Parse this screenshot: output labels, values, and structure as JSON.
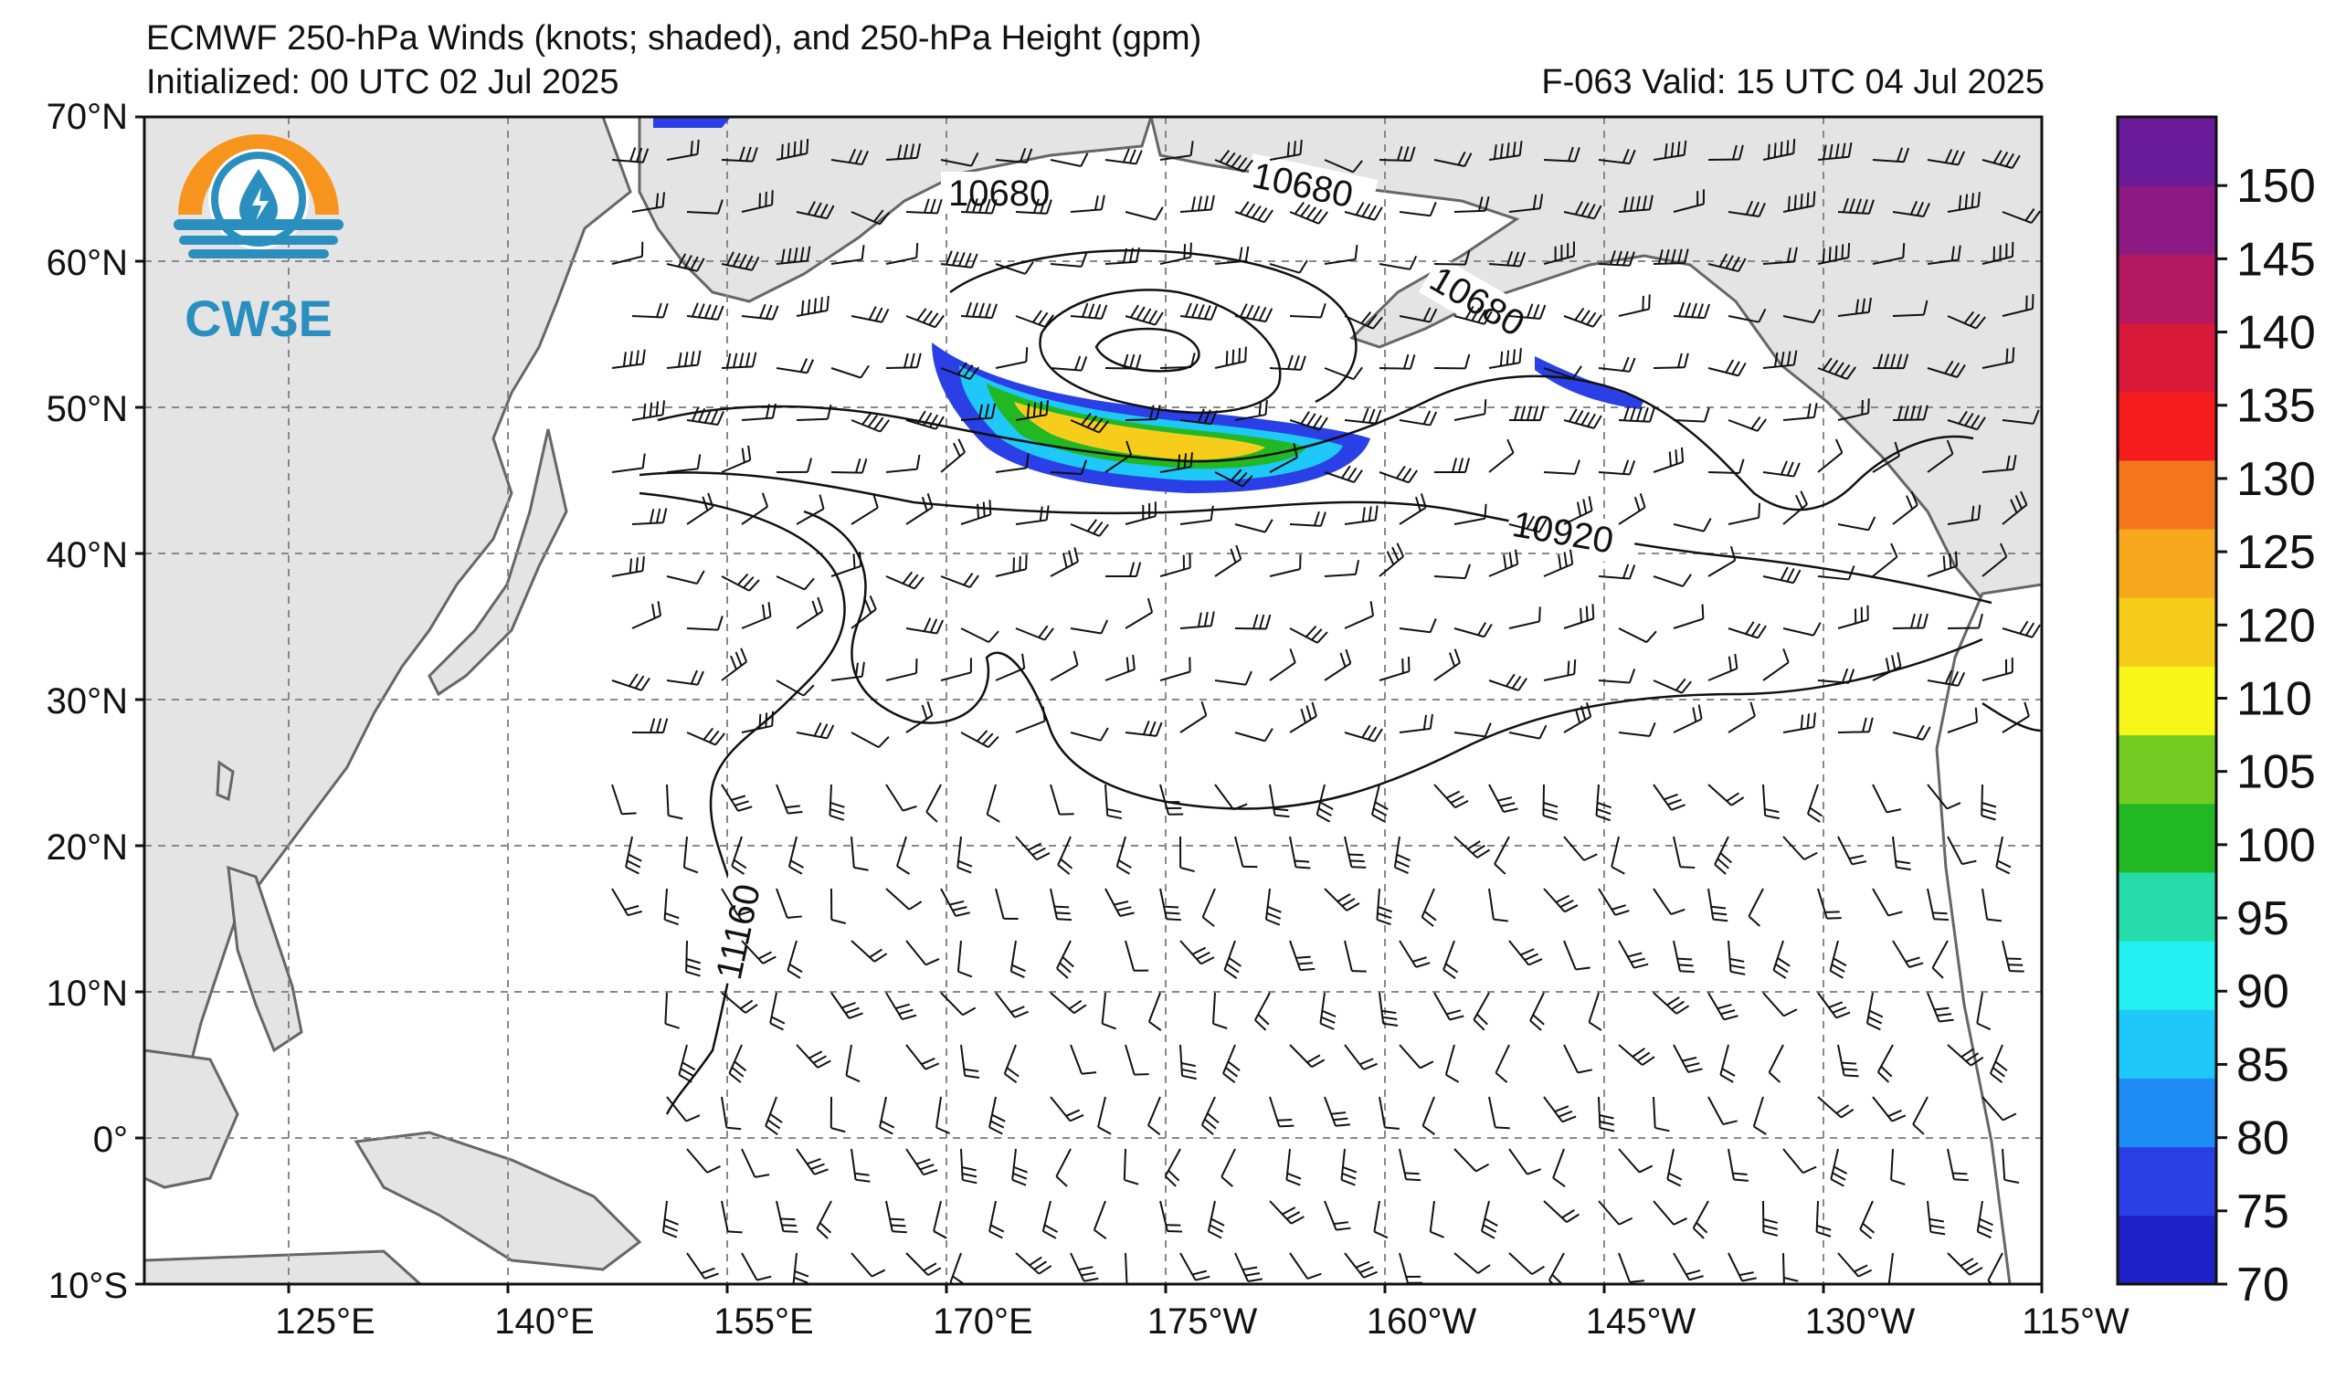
{
  "title": {
    "line1": "ECMWF 250-hPa Winds (knots; shaded), and 250-hPa Height (gpm)",
    "initialized": "Initialized: 00 UTC 02 Jul 2025",
    "valid": "F-063  Valid: 15 UTC 04 Jul 2025"
  },
  "logo": {
    "text": "CW3E",
    "icon": "water-drop-lightning-icon",
    "colors": {
      "sun": "#f7941d",
      "waves": "#2a8fbf"
    }
  },
  "axes": {
    "lat_labels": [
      "70°N",
      "60°N",
      "50°N",
      "40°N",
      "30°N",
      "20°N",
      "10°N",
      "0°",
      "10°S"
    ],
    "lon_labels": [
      "125°E",
      "140°E",
      "155°E",
      "170°E",
      "175°W",
      "160°W",
      "145°W",
      "130°W",
      "115°W"
    ]
  },
  "contour_labels": [
    "10680",
    "10680",
    "10680",
    "10920",
    "11160"
  ],
  "colorbar": {
    "labels": [
      "70",
      "75",
      "80",
      "85",
      "90",
      "95",
      "100",
      "105",
      "110",
      "120",
      "125",
      "130",
      "135",
      "140",
      "145",
      "150"
    ],
    "colors": [
      "#1e20c8",
      "#2a3fe6",
      "#1f8cf5",
      "#1ec8f8",
      "#23f0f0",
      "#25dcaa",
      "#22b823",
      "#74cc22",
      "#f6f618",
      "#f7cd1b",
      "#f7a81c",
      "#f6761e",
      "#f41c1c",
      "#d8193a",
      "#b51862",
      "#8c1a82",
      "#6a1b9a"
    ]
  }
}
